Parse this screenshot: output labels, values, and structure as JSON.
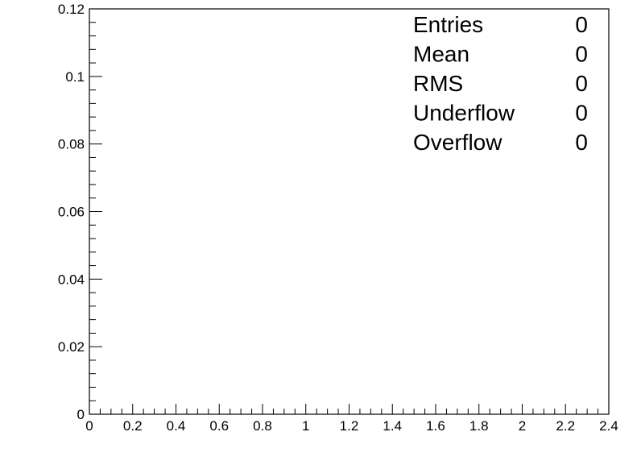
{
  "chart_data": {
    "type": "bar",
    "title": "",
    "xlabel": "",
    "ylabel": "",
    "xlim": [
      0,
      2.4
    ],
    "ylim": [
      0,
      0.12
    ],
    "x_ticks": [
      {
        "value": 0,
        "label": "0"
      },
      {
        "value": 0.2,
        "label": "0.2"
      },
      {
        "value": 0.4,
        "label": "0.4"
      },
      {
        "value": 0.6,
        "label": "0.6"
      },
      {
        "value": 0.8,
        "label": "0.8"
      },
      {
        "value": 1.0,
        "label": "1"
      },
      {
        "value": 1.2,
        "label": "1.2"
      },
      {
        "value": 1.4,
        "label": "1.4"
      },
      {
        "value": 1.6,
        "label": "1.6"
      },
      {
        "value": 1.8,
        "label": "1.8"
      },
      {
        "value": 2.0,
        "label": "2"
      },
      {
        "value": 2.2,
        "label": "2.2"
      },
      {
        "value": 2.4,
        "label": "2.4"
      }
    ],
    "y_ticks": [
      {
        "value": 0,
        "label": "0"
      },
      {
        "value": 0.02,
        "label": "0.02"
      },
      {
        "value": 0.04,
        "label": "0.04"
      },
      {
        "value": 0.06,
        "label": "0.06"
      },
      {
        "value": 0.08,
        "label": "0.08"
      },
      {
        "value": 0.1,
        "label": "0.1"
      },
      {
        "value": 0.12,
        "label": "0.12"
      }
    ],
    "x_minor_divisions": 4,
    "y_minor_divisions": 5,
    "series": [],
    "grid": false,
    "stats_box": {
      "placement": "top-right",
      "rows": [
        {
          "label": "Entries",
          "value": "0"
        },
        {
          "label": "Mean",
          "value": "0"
        },
        {
          "label": "RMS",
          "value": "0"
        },
        {
          "label": "Underflow",
          "value": "0"
        },
        {
          "label": "Overflow",
          "value": "0"
        }
      ]
    }
  }
}
